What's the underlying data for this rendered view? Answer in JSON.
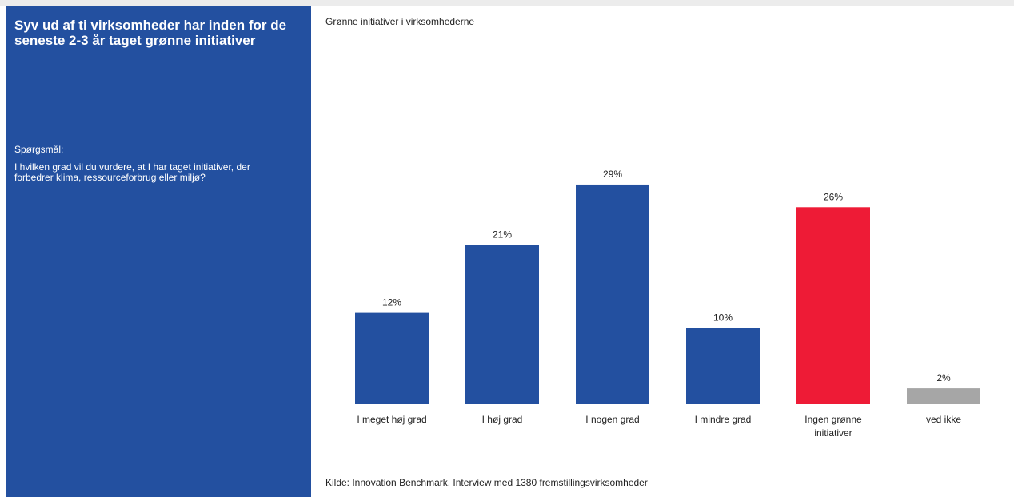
{
  "sidebar": {
    "headline": "Syv ud af ti virksomheder har inden for de seneste 2-3 år taget grønne initiativer",
    "question_label": "Spørgsmål:",
    "question_text": "I hvilken grad vil du vurdere, at I har taget initiativer, der forbedrer klima, ressourceforbrug eller miljø?"
  },
  "colors": {
    "sidebar_bg": "#2350a0",
    "bar_default": "#2350a0",
    "bar_highlight": "#ee1b36",
    "bar_neutral": "#a6a6a6"
  },
  "chart_data": {
    "type": "bar",
    "title": "Grønne initiativer i virksomhederne",
    "categories": [
      "I meget høj grad",
      "I høj grad",
      "I nogen grad",
      "I mindre grad",
      "Ingen grønne initiativer",
      "ved ikke"
    ],
    "category_lines": [
      [
        "I meget høj grad"
      ],
      [
        "I høj grad"
      ],
      [
        "I nogen grad"
      ],
      [
        "I mindre grad"
      ],
      [
        "Ingen grønne",
        "initiativer"
      ],
      [
        "ved ikke"
      ]
    ],
    "values": [
      12,
      21,
      29,
      10,
      26,
      2
    ],
    "value_labels": [
      "12%",
      "21%",
      "29%",
      "10%",
      "26%",
      "2%"
    ],
    "unit": "%",
    "ylim": [
      0,
      29
    ],
    "grid": false,
    "legend": "none"
  },
  "source": "Kilde: Innovation Benchmark, Interview med 1380 fremstillingsvirksomheder"
}
